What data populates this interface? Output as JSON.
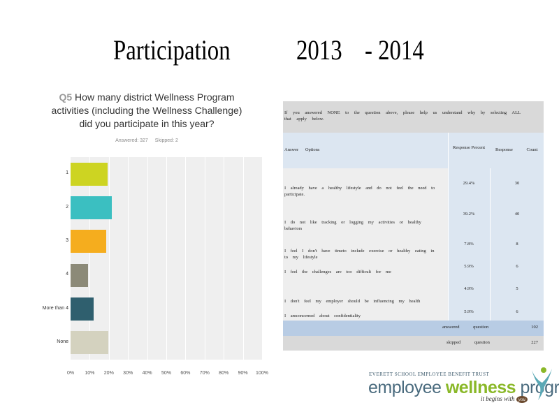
{
  "slide": {
    "title_left": "Participation",
    "title_year1": "2013",
    "title_year2": "- 2014"
  },
  "survey": {
    "question_number": "Q5",
    "question_text": "How many district Wellness Program activities (including the Wellness Challenge) did you participate in this year?",
    "answered": "Answered: 327",
    "skipped": "Skipped: 2"
  },
  "chart_data": {
    "type": "bar",
    "orientation": "horizontal",
    "categories": [
      "1",
      "2",
      "3",
      "4",
      "More than 4",
      "None"
    ],
    "values": [
      19.3,
      21.6,
      18.6,
      9.3,
      12.0,
      19.6
    ],
    "colors": [
      "#cdd422",
      "#3bbfc1",
      "#f5ad1e",
      "#8c8a78",
      "#2f5f6e",
      "#d4d2bf"
    ],
    "xlim": [
      0,
      100
    ],
    "xticks": [
      "0%",
      "10%",
      "20%",
      "30%",
      "40%",
      "50%",
      "60%",
      "70%",
      "80%",
      "90%",
      "100%"
    ],
    "grid": true
  },
  "table": {
    "question": "If you answered NONE to the question above, please help us understand why by selecting ALL that apply below.",
    "header_options": "Answer Options",
    "header_percent": "Response Percent",
    "header_count": "Response Count",
    "rows": [
      {
        "option": "I already have a healthy lifestyle and do not feel the need to participate.",
        "percent": "29.4%",
        "count": "30"
      },
      {
        "option": "I do not like tracking or logging my activities or healthy behaviors",
        "percent": "39.2%",
        "count": "40"
      },
      {
        "option": "I feel I don't have timeto include exercise or healthy eating in to my lifestyle",
        "percent": "7.8%",
        "count": "8"
      },
      {
        "option": "I feel the challenges are too difficult for me",
        "percent": "5.9%",
        "count": "6"
      },
      {
        "option": "I don't feel my employer should be influencing my health",
        "percent": "4.9%",
        "count": "5"
      },
      {
        "option": "I amconcerned about confidentiality",
        "percent": "5.9%",
        "count": "6"
      }
    ],
    "answered_label": "answered question",
    "answered_value": "102",
    "skipped_label": "skipped question",
    "skipped_value": "227"
  },
  "logo": {
    "org": "EVERETT SCHOOL EMPLOYEE BENEFIT TRUST",
    "word1": "employee",
    "word2": "wellness",
    "word3": "program",
    "tagline": "it begins with",
    "tagline_you": "you"
  }
}
